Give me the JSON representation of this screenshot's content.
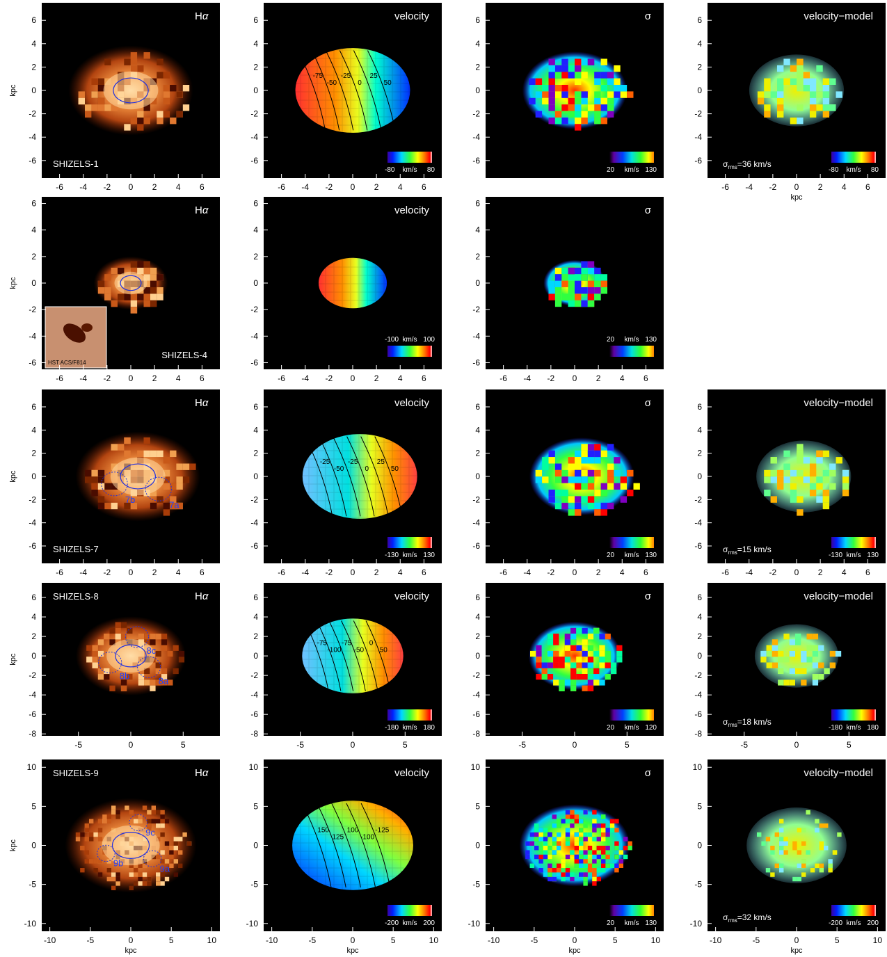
{
  "figure": {
    "axis_unit": "kpc",
    "colorbar_unit": "km/s",
    "inset_label": "HST ACS/F814",
    "sigma_rms_prefix": "σ",
    "sigma_rms_sub": "rms"
  },
  "chart_data": [
    {
      "type": "heatmap",
      "object": "SHIZELS-1",
      "rows": [
        {
          "panel": "Hα",
          "label": "SHIZELS-1",
          "xlim": [
            -7.5,
            7.5
          ],
          "ylim": [
            -7.5,
            7.5
          ],
          "xticks": [
            -6,
            -4,
            -2,
            0,
            2,
            4,
            6
          ],
          "yticks": [
            -6,
            -4,
            -2,
            0,
            2,
            4,
            6
          ],
          "ylabel": "kpc",
          "xlabel": ""
        },
        {
          "panel": "velocity",
          "colorbar": [
            -80,
            80
          ],
          "contours": [
            "-75",
            "-50",
            "-25",
            "0",
            "25",
            "50"
          ],
          "xlim": [
            -7.5,
            7.5
          ],
          "ylim": [
            -7.5,
            7.5
          ],
          "xticks": [
            -6,
            -4,
            -2,
            0,
            2,
            4,
            6
          ],
          "yticks": [
            -6,
            -4,
            -2,
            0,
            2,
            4,
            6
          ]
        },
        {
          "panel": "σ",
          "colorbar": [
            20,
            130
          ],
          "xlim": [
            -7.5,
            7.5
          ],
          "ylim": [
            -7.5,
            7.5
          ],
          "yticks": [
            -6,
            -4,
            -2,
            0,
            2,
            4,
            6
          ]
        },
        {
          "panel": "velocity−model",
          "colorbar": [
            -80,
            80
          ],
          "sigma_rms": "=36 km/s",
          "xlim": [
            -7.5,
            7.5
          ],
          "ylim": [
            -7.5,
            7.5
          ],
          "xticks": [
            -6,
            -4,
            -2,
            0,
            2,
            4,
            6
          ],
          "yticks": [
            -6,
            -4,
            -2,
            0,
            2,
            4,
            6
          ],
          "xlabel": "kpc"
        }
      ]
    },
    {
      "type": "heatmap",
      "object": "SHIZELS-4",
      "rows": [
        {
          "panel": "Hα",
          "label": "SHIZELS-4",
          "xlim": [
            -7.5,
            7.5
          ],
          "ylim": [
            -6.5,
            6.5
          ],
          "xticks": [
            -6,
            -4,
            -2,
            0,
            2,
            4,
            6
          ],
          "yticks": [
            -6,
            -4,
            -2,
            0,
            2,
            4,
            6
          ],
          "ylabel": "kpc"
        },
        {
          "panel": "velocity",
          "colorbar": [
            -100,
            100
          ],
          "xlim": [
            -7.5,
            7.5
          ],
          "ylim": [
            -6.5,
            6.5
          ],
          "xticks": [
            -6,
            -4,
            -2,
            0,
            2,
            4,
            6
          ],
          "yticks": [
            -6,
            -4,
            -2,
            0,
            2,
            4,
            6
          ]
        },
        {
          "panel": "σ",
          "colorbar": [
            20,
            130
          ],
          "xlim": [
            -7.5,
            7.5
          ],
          "ylim": [
            -6.5,
            6.5
          ],
          "xticks": [
            -6,
            -4,
            -2,
            0,
            2,
            4,
            6
          ],
          "yticks": [
            -6,
            -4,
            -2,
            0,
            2,
            4,
            6
          ]
        }
      ]
    },
    {
      "type": "heatmap",
      "object": "SHIZELS-7",
      "rows": [
        {
          "panel": "Hα",
          "label": "SHIZELS-7",
          "clumps": [
            "7a",
            "7b"
          ],
          "xlim": [
            -7.5,
            7.5
          ],
          "ylim": [
            -7.5,
            7.5
          ],
          "xticks": [
            -6,
            -4,
            -2,
            0,
            2,
            4,
            6
          ],
          "yticks": [
            -6,
            -4,
            -2,
            0,
            2,
            4,
            6
          ],
          "ylabel": "kpc"
        },
        {
          "panel": "velocity",
          "colorbar": [
            -130,
            130
          ],
          "contours": [
            "-25",
            "-50",
            "-25",
            "0",
            "25",
            "50"
          ],
          "xlim": [
            -7.5,
            7.5
          ],
          "ylim": [
            -7.5,
            7.5
          ],
          "xticks": [
            -6,
            -4,
            -2,
            0,
            2,
            4,
            6
          ],
          "yticks": [
            -6,
            -4,
            -2,
            0,
            2,
            4,
            6
          ]
        },
        {
          "panel": "σ",
          "colorbar": [
            20,
            130
          ],
          "xlim": [
            -7.5,
            7.5
          ],
          "ylim": [
            -7.5,
            7.5
          ],
          "xticks": [
            -6,
            -4,
            -2,
            0,
            2,
            4,
            6
          ],
          "yticks": [
            -6,
            -4,
            -2,
            0,
            2,
            4,
            6
          ]
        },
        {
          "panel": "velocity−model",
          "colorbar": [
            -130,
            130
          ],
          "sigma_rms": "=15 km/s",
          "xlim": [
            -7.5,
            7.5
          ],
          "ylim": [
            -7.5,
            7.5
          ],
          "xticks": [
            -6,
            -4,
            -2,
            0,
            2,
            4,
            6
          ],
          "yticks": [
            -6,
            -4,
            -2,
            0,
            2,
            4,
            6
          ]
        }
      ]
    },
    {
      "type": "heatmap",
      "object": "SHIZELS-8",
      "rows": [
        {
          "panel": "Hα",
          "label": "SHIZELS-8",
          "clumps": [
            "8a",
            "8b",
            "8c"
          ],
          "xlim": [
            -8.5,
            8.5
          ],
          "ylim": [
            -8.2,
            7.5
          ],
          "xticks": [
            -5,
            0,
            5
          ],
          "yticks": [
            -8,
            -6,
            -4,
            -2,
            0,
            2,
            4,
            6
          ],
          "ylabel": "kpc"
        },
        {
          "panel": "velocity",
          "colorbar": [
            -180,
            180
          ],
          "contours": [
            "-75",
            "-100",
            "-75",
            "-50",
            "0",
            "50"
          ],
          "xlim": [
            -8.5,
            8.5
          ],
          "ylim": [
            -8.2,
            7.5
          ],
          "xticks": [
            -5,
            0,
            5
          ],
          "yticks": [
            -8,
            -6,
            -4,
            -2,
            0,
            2,
            4,
            6
          ]
        },
        {
          "panel": "σ",
          "colorbar": [
            20,
            120
          ],
          "xlim": [
            -8.5,
            8.5
          ],
          "ylim": [
            -8.2,
            7.5
          ],
          "xticks": [
            -5,
            0,
            5
          ],
          "yticks": [
            -8,
            -6,
            -4,
            -2,
            0,
            2,
            4,
            6
          ]
        },
        {
          "panel": "velocity−model",
          "colorbar": [
            -180,
            180
          ],
          "sigma_rms": "=18 km/s",
          "xlim": [
            -8.5,
            8.5
          ],
          "ylim": [
            -8.2,
            7.5
          ],
          "xticks": [
            -5,
            0,
            5
          ],
          "yticks": [
            -8,
            -6,
            -4,
            -2,
            0,
            2,
            4,
            6
          ]
        }
      ]
    },
    {
      "type": "heatmap",
      "object": "SHIZELS-9",
      "rows": [
        {
          "panel": "Hα",
          "label": "SHIZELS-9",
          "clumps": [
            "9a",
            "9b",
            "9c"
          ],
          "xlim": [
            -11,
            11
          ],
          "ylim": [
            -11,
            11
          ],
          "xticks": [
            -10,
            -5,
            0,
            5,
            10
          ],
          "yticks": [
            -10,
            -5,
            0,
            5,
            10
          ],
          "ylabel": "kpc",
          "xlabel": "kpc"
        },
        {
          "panel": "velocity",
          "colorbar": [
            -200,
            200
          ],
          "contours": [
            "150",
            "125",
            "100",
            "-100",
            "-125"
          ],
          "xlim": [
            -11,
            11
          ],
          "ylim": [
            -11,
            11
          ],
          "xticks": [
            -10,
            -5,
            0,
            5,
            10
          ],
          "yticks": [
            -10,
            -5,
            0,
            5,
            10
          ],
          "xlabel": "kpc"
        },
        {
          "panel": "σ",
          "colorbar": [
            20,
            130
          ],
          "xlim": [
            -11,
            11
          ],
          "ylim": [
            -11,
            11
          ],
          "xticks": [
            -10,
            -5,
            0,
            5,
            10
          ],
          "yticks": [
            -10,
            -5,
            0,
            5,
            10
          ],
          "xlabel": "kpc"
        },
        {
          "panel": "velocity−model",
          "colorbar": [
            -200,
            200
          ],
          "sigma_rms": "=32 km/s",
          "xlim": [
            -11,
            11
          ],
          "ylim": [
            -11,
            11
          ],
          "xticks": [
            -10,
            -5,
            0,
            5,
            10
          ],
          "yticks": [
            -10,
            -5,
            0,
            5,
            10
          ],
          "xlabel": "kpc"
        }
      ]
    }
  ]
}
